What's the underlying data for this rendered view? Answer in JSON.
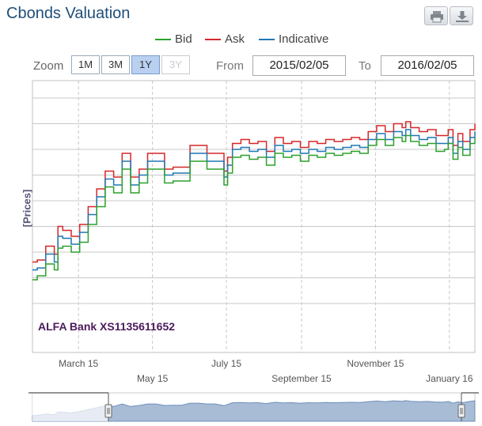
{
  "page": {
    "title": "Cbonds Valuation",
    "zoom_label": "Zoom",
    "zoom_buttons": [
      "1M",
      "3M",
      "1Y",
      "3Y"
    ],
    "from_label": "From",
    "from_value": "2015/02/05",
    "to_label": "To",
    "to_value": "2016/02/05",
    "icons": [
      "print-icon",
      "download-icon"
    ]
  },
  "colors": {
    "bid": "#2ca02c",
    "ask": "#d62728",
    "indicative": "#1f77b4",
    "navigator_fill": "#a8bcd6",
    "title": "#1f4e79"
  },
  "chart_data": {
    "type": "line",
    "ylabel": "[Prices]",
    "annotation": "ALFA Bank XS1135611652",
    "x_tick_labels": [
      "March 15",
      "May 15",
      "July 15",
      "September 15",
      "November 15",
      "January 16"
    ],
    "x_range": [
      "2015-02-05",
      "2016-02-05"
    ],
    "legend": {
      "position": "top",
      "items": [
        "Bid",
        "Ask",
        "Indicative"
      ]
    },
    "grid": true,
    "y_gridline_count": 8,
    "series": [
      {
        "name": "Ask",
        "x": [
          "2015-02-05",
          "2015-02-09",
          "2015-02-16",
          "2015-02-23",
          "2015-02-26",
          "2015-03-02",
          "2015-03-09",
          "2015-03-16",
          "2015-03-23",
          "2015-03-30",
          "2015-04-06",
          "2015-04-13",
          "2015-04-20",
          "2015-04-27",
          "2015-05-04",
          "2015-05-11",
          "2015-05-18",
          "2015-05-25",
          "2015-06-01",
          "2015-06-08",
          "2015-06-15",
          "2015-06-22",
          "2015-06-29",
          "2015-07-06",
          "2015-07-13",
          "2015-07-16",
          "2015-07-20",
          "2015-07-27",
          "2015-08-03",
          "2015-08-10",
          "2015-08-17",
          "2015-08-24",
          "2015-08-31",
          "2015-09-07",
          "2015-09-14",
          "2015-09-21",
          "2015-09-28",
          "2015-10-05",
          "2015-10-12",
          "2015-10-19",
          "2015-10-26",
          "2015-11-02",
          "2015-11-09",
          "2015-11-16",
          "2015-11-23",
          "2015-11-30",
          "2015-12-07",
          "2015-12-10",
          "2015-12-14",
          "2015-12-21",
          "2015-12-28",
          "2016-01-04",
          "2016-01-11",
          "2016-01-14",
          "2016-01-18",
          "2016-01-22",
          "2016-01-26",
          "2016-02-01",
          "2016-02-05"
        ],
        "values": [
          4.55,
          4.6,
          4.95,
          4.75,
          5.45,
          5.35,
          5.2,
          5.5,
          5.95,
          6.4,
          6.85,
          6.7,
          7.3,
          6.7,
          6.9,
          7.3,
          7.3,
          6.9,
          6.95,
          6.95,
          7.5,
          7.5,
          7.3,
          7.3,
          6.85,
          7.2,
          7.55,
          7.65,
          7.55,
          7.6,
          7.35,
          7.7,
          7.55,
          7.6,
          7.45,
          7.6,
          7.55,
          7.65,
          7.6,
          7.65,
          7.7,
          7.65,
          7.85,
          8.0,
          7.85,
          8.05,
          7.95,
          8.1,
          7.95,
          7.85,
          7.9,
          7.75,
          7.75,
          7.9,
          7.5,
          7.8,
          7.6,
          7.9,
          8.05
        ]
      },
      {
        "name": "Indicative",
        "x": [
          "2015-02-05",
          "2015-02-09",
          "2015-02-16",
          "2015-02-23",
          "2015-02-26",
          "2015-03-02",
          "2015-03-09",
          "2015-03-16",
          "2015-03-23",
          "2015-03-30",
          "2015-04-06",
          "2015-04-13",
          "2015-04-20",
          "2015-04-27",
          "2015-05-04",
          "2015-05-11",
          "2015-05-18",
          "2015-05-25",
          "2015-06-01",
          "2015-06-08",
          "2015-06-15",
          "2015-06-22",
          "2015-06-29",
          "2015-07-06",
          "2015-07-13",
          "2015-07-16",
          "2015-07-20",
          "2015-07-27",
          "2015-08-03",
          "2015-08-10",
          "2015-08-17",
          "2015-08-24",
          "2015-08-31",
          "2015-09-07",
          "2015-09-14",
          "2015-09-21",
          "2015-09-28",
          "2015-10-05",
          "2015-10-12",
          "2015-10-19",
          "2015-10-26",
          "2015-11-02",
          "2015-11-09",
          "2015-11-16",
          "2015-11-23",
          "2015-11-30",
          "2015-12-07",
          "2015-12-10",
          "2015-12-14",
          "2015-12-21",
          "2015-12-28",
          "2016-01-04",
          "2016-01-11",
          "2016-01-14",
          "2016-01-18",
          "2016-01-22",
          "2016-01-26",
          "2016-02-01",
          "2016-02-05"
        ],
        "values": [
          4.35,
          4.4,
          4.75,
          4.55,
          5.2,
          5.15,
          5.0,
          5.3,
          5.75,
          6.2,
          6.65,
          6.5,
          7.1,
          6.5,
          6.75,
          7.1,
          7.1,
          6.75,
          6.8,
          6.8,
          7.3,
          7.3,
          7.1,
          7.1,
          6.7,
          7.0,
          7.4,
          7.45,
          7.35,
          7.4,
          7.2,
          7.5,
          7.35,
          7.4,
          7.3,
          7.4,
          7.35,
          7.45,
          7.4,
          7.45,
          7.5,
          7.45,
          7.65,
          7.8,
          7.65,
          7.85,
          7.75,
          7.9,
          7.75,
          7.65,
          7.7,
          7.55,
          7.55,
          7.7,
          7.3,
          7.6,
          7.4,
          7.7,
          7.85
        ]
      },
      {
        "name": "Bid",
        "x": [
          "2015-02-05",
          "2015-02-09",
          "2015-02-16",
          "2015-02-23",
          "2015-02-26",
          "2015-03-02",
          "2015-03-09",
          "2015-03-16",
          "2015-03-23",
          "2015-03-30",
          "2015-04-06",
          "2015-04-13",
          "2015-04-20",
          "2015-04-27",
          "2015-05-04",
          "2015-05-11",
          "2015-05-18",
          "2015-05-25",
          "2015-06-01",
          "2015-06-08",
          "2015-06-15",
          "2015-06-22",
          "2015-06-29",
          "2015-07-06",
          "2015-07-13",
          "2015-07-16",
          "2015-07-20",
          "2015-07-27",
          "2015-08-03",
          "2015-08-10",
          "2015-08-17",
          "2015-08-24",
          "2015-08-31",
          "2015-09-07",
          "2015-09-14",
          "2015-09-21",
          "2015-09-28",
          "2015-10-05",
          "2015-10-12",
          "2015-10-19",
          "2015-10-26",
          "2015-11-02",
          "2015-11-09",
          "2015-11-16",
          "2015-11-23",
          "2015-11-30",
          "2015-12-07",
          "2015-12-10",
          "2015-12-14",
          "2015-12-21",
          "2015-12-28",
          "2016-01-04",
          "2016-01-11",
          "2016-01-14",
          "2016-01-18",
          "2016-01-22",
          "2016-01-26",
          "2016-02-01",
          "2016-02-05"
        ],
        "values": [
          4.1,
          4.2,
          4.5,
          4.35,
          4.9,
          4.95,
          4.8,
          5.05,
          5.5,
          5.95,
          6.45,
          6.3,
          6.9,
          6.3,
          6.55,
          6.9,
          6.9,
          6.55,
          6.6,
          6.6,
          7.1,
          7.1,
          6.9,
          6.9,
          6.5,
          6.8,
          7.2,
          7.25,
          7.15,
          7.2,
          7.0,
          7.3,
          7.2,
          7.25,
          7.1,
          7.25,
          7.2,
          7.3,
          7.25,
          7.3,
          7.35,
          7.3,
          7.5,
          7.65,
          7.5,
          7.7,
          7.6,
          7.75,
          7.6,
          7.5,
          7.55,
          7.35,
          7.4,
          7.55,
          7.15,
          7.45,
          7.25,
          7.55,
          7.7
        ]
      }
    ]
  }
}
